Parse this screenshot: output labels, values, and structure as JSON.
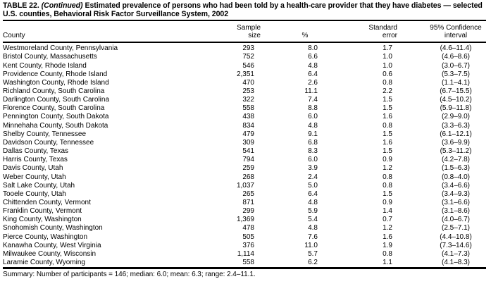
{
  "title": {
    "prefix": "TABLE 22.",
    "continued": "(Continued)",
    "line1_rest": "Estimated prevalence of persons who had been told by a health-care provider that they have diabetes —",
    "line2": "selected U.S. counties, Behavioral Risk Factor Surveillance System, 2002"
  },
  "table": {
    "column_keys": [
      "county",
      "sample_size",
      "percent",
      "standard_error",
      "confidence_interval"
    ],
    "header": {
      "county": "County",
      "sample_size": [
        "Sample",
        "size"
      ],
      "percent": "%",
      "standard_error": [
        "Standard",
        "error"
      ],
      "confidence_interval": [
        "95% Confidence",
        "interval"
      ]
    },
    "rows": [
      [
        "Westmoreland County, Pennsylvania",
        "293",
        "8.0",
        "1.7",
        "(4.6–11.4)"
      ],
      [
        "Bristol County, Massachusetts",
        "752",
        "6.6",
        "1.0",
        "(4.6–8.6)"
      ],
      [
        "Kent County, Rhode Island",
        "546",
        "4.8",
        "1.0",
        "(3.0–6.7)"
      ],
      [
        "Providence County, Rhode Island",
        "2,351",
        "6.4",
        "0.6",
        "(5.3–7.5)"
      ],
      [
        "Washington County, Rhode Island",
        "470",
        "2.6",
        "0.8",
        "(1.1–4.1)"
      ],
      [
        "Richland County, South Carolina",
        "253",
        "11.1",
        "2.2",
        "(6.7–15.5)"
      ],
      [
        "Darlington County, South Carolina",
        "322",
        "7.4",
        "1.5",
        "(4.5–10.2)"
      ],
      [
        "Florence County, South Carolina",
        "558",
        "8.8",
        "1.5",
        "(5.9–11.8)"
      ],
      [
        "Pennington County, South Dakota",
        "438",
        "6.0",
        "1.6",
        "(2.9–9.0)"
      ],
      [
        "Minnehaha County, South Dakota",
        "834",
        "4.8",
        "0.8",
        "(3.3–6.3)"
      ],
      [
        "Shelby County, Tennessee",
        "479",
        "9.1",
        "1.5",
        "(6.1–12.1)"
      ],
      [
        "Davidson County, Tennessee",
        "309",
        "6.8",
        "1.6",
        "(3.6–9.9)"
      ],
      [
        "Dallas County, Texas",
        "541",
        "8.3",
        "1.5",
        "(5.3–11.2)"
      ],
      [
        "Harris County, Texas",
        "794",
        "6.0",
        "0.9",
        "(4.2–7.8)"
      ],
      [
        "Davis County, Utah",
        "259",
        "3.9",
        "1.2",
        "(1.5–6.3)"
      ],
      [
        "Weber County, Utah",
        "268",
        "2.4",
        "0.8",
        "(0.8–4.0)"
      ],
      [
        "Salt Lake County, Utah",
        "1,037",
        "5.0",
        "0.8",
        "(3.4–6.6)"
      ],
      [
        "Tooele County, Utah",
        "265",
        "6.4",
        "1.5",
        "(3.4–9.3)"
      ],
      [
        "Chittenden County, Vermont",
        "871",
        "4.8",
        "0.9",
        "(3.1–6.6)"
      ],
      [
        "Franklin County, Vermont",
        "299",
        "5.9",
        "1.4",
        "(3.1–8.6)"
      ],
      [
        "King County, Washington",
        "1,369",
        "5.4",
        "0.7",
        "(4.0–6.7)"
      ],
      [
        "Snohomish County, Washington",
        "478",
        "4.8",
        "1.2",
        "(2.5–7.1)"
      ],
      [
        "Pierce County, Washington",
        "505",
        "7.6",
        "1.6",
        "(4.4–10.8)"
      ],
      [
        "Kanawha County, West Virginia",
        "376",
        "11.0",
        "1.9",
        "(7.3–14.6)"
      ],
      [
        "Milwaukee County, Wisconsin",
        "1,114",
        "5.7",
        "0.8",
        "(4.1–7.3)"
      ],
      [
        "Laramie County, Wyoming",
        "558",
        "6.2",
        "1.1",
        "(4.1–8.3)"
      ]
    ]
  },
  "summary": "Summary: Number of participants = 146; median: 6.0; mean: 6.3; range: 2.4–11.1."
}
